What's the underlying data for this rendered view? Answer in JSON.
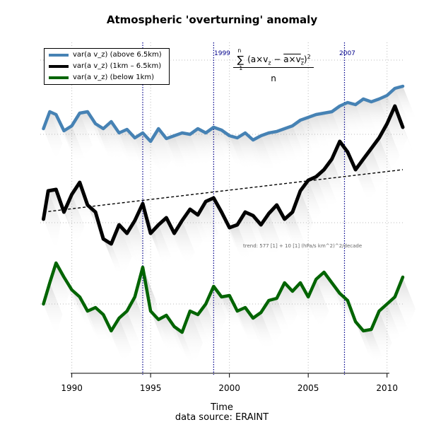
{
  "chart_data": {
    "type": "line",
    "title": "Atmospheric 'overturning' anomaly",
    "xlabel": "Time",
    "source": "data source: ERAINT",
    "xlim": [
      1988,
      2011
    ],
    "xticks": [
      1990,
      1995,
      2000,
      2005,
      2010
    ],
    "vlines": [
      {
        "x": 1994.5,
        "label": ""
      },
      {
        "x": 1999.0,
        "label": "1999"
      },
      {
        "x": 2007.3,
        "label": "2007"
      }
    ],
    "formula": {
      "sum": "∑",
      "sum_upper": "n",
      "sum_lower": "1",
      "numerator": "(a×v",
      "sub1": "z",
      "minus": " − ",
      "overline": "a×v",
      "sub2": "z",
      "close": ")",
      "power": "2",
      "denominator": "n"
    },
    "trend_text": "trend: 577 [1] + 10 [1] (hPa/s km^2)^2/decade",
    "trend_line": {
      "x": [
        1988.2,
        2011
      ],
      "y": [
        300,
        240
      ],
      "dash": true,
      "color": "#000000"
    },
    "series": [
      {
        "name": "var(a v_z) (above 6.5km)",
        "color": "#4682b4",
        "x": [
          1988.2,
          1988.6,
          1989.0,
          1989.5,
          1990.0,
          1990.5,
          1991.0,
          1991.5,
          1992.0,
          1992.5,
          1993.0,
          1993.5,
          1994.0,
          1994.5,
          1995.0,
          1995.5,
          1996.0,
          1996.5,
          1997.0,
          1997.5,
          1998.0,
          1998.5,
          1999.0,
          1999.5,
          2000.0,
          2000.5,
          2001.0,
          2001.5,
          2002.0,
          2002.5,
          2003.0,
          2003.5,
          2004.0,
          2004.5,
          2005.0,
          2005.5,
          2006.0,
          2006.5,
          2007.0,
          2007.5,
          2008.0,
          2008.5,
          2009.0,
          2009.5,
          2010.0,
          2010.5,
          2011.0
        ],
        "y": [
          182,
          158,
          162,
          185,
          178,
          160,
          158,
          175,
          182,
          172,
          188,
          183,
          195,
          188,
          200,
          182,
          196,
          192,
          188,
          190,
          182,
          188,
          180,
          184,
          192,
          195,
          188,
          198,
          192,
          188,
          186,
          182,
          178,
          170,
          166,
          162,
          160,
          158,
          150,
          145,
          148,
          140,
          144,
          140,
          135,
          125,
          122
        ]
      },
      {
        "name": "var(a v_z) (1km – 6.5km)",
        "color": "#000000",
        "x": [
          1988.2,
          1988.5,
          1989.0,
          1989.5,
          1990.0,
          1990.5,
          1991.0,
          1991.5,
          1992.0,
          1992.5,
          1993.0,
          1993.5,
          1994.0,
          1994.5,
          1995.0,
          1995.5,
          1996.0,
          1996.5,
          1997.0,
          1997.5,
          1998.0,
          1998.5,
          1999.0,
          1999.5,
          2000.0,
          2000.5,
          2001.0,
          2001.5,
          2002.0,
          2002.5,
          2003.0,
          2003.5,
          2004.0,
          2004.5,
          2005.0,
          2005.5,
          2006.0,
          2006.5,
          2007.0,
          2007.5,
          2008.0,
          2008.5,
          2009.0,
          2009.5,
          2010.0,
          2010.5,
          2011.0
        ],
        "y": [
          310,
          270,
          268,
          300,
          275,
          258,
          290,
          300,
          338,
          345,
          318,
          330,
          312,
          288,
          330,
          318,
          308,
          330,
          312,
          296,
          304,
          285,
          280,
          300,
          322,
          318,
          300,
          305,
          318,
          302,
          290,
          310,
          300,
          270,
          255,
          250,
          240,
          225,
          200,
          215,
          240,
          225,
          210,
          195,
          175,
          150,
          180
        ]
      },
      {
        "name": "var(a v_z) (below 1km)",
        "color": "#006400",
        "x": [
          1988.2,
          1988.6,
          1989.0,
          1989.5,
          1990.0,
          1990.5,
          1991.0,
          1991.5,
          1992.0,
          1992.5,
          1993.0,
          1993.5,
          1994.0,
          1994.5,
          1995.0,
          1995.5,
          1996.0,
          1996.5,
          1997.0,
          1997.5,
          1998.0,
          1998.5,
          1999.0,
          1999.5,
          2000.0,
          2000.5,
          2001.0,
          2001.5,
          2002.0,
          2002.5,
          2003.0,
          2003.5,
          2004.0,
          2004.5,
          2005.0,
          2005.5,
          2006.0,
          2006.5,
          2007.0,
          2007.5,
          2008.0,
          2008.5,
          2009.0,
          2009.5,
          2010.0,
          2010.5,
          2011.0
        ],
        "y": [
          430,
          400,
          372,
          392,
          410,
          420,
          440,
          435,
          445,
          468,
          450,
          440,
          420,
          378,
          440,
          452,
          446,
          462,
          470,
          440,
          445,
          430,
          405,
          420,
          418,
          440,
          435,
          450,
          442,
          425,
          422,
          400,
          412,
          400,
          420,
          395,
          385,
          400,
          415,
          425,
          455,
          468,
          466,
          440,
          430,
          420,
          392
        ]
      }
    ]
  }
}
